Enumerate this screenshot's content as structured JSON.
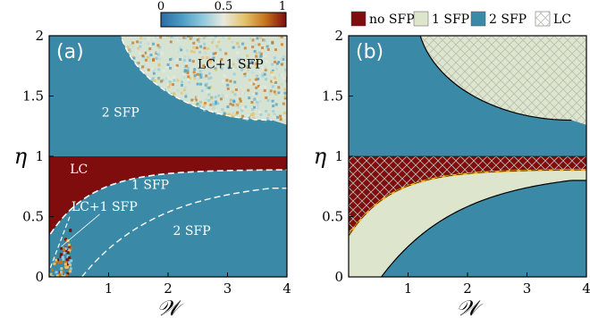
{
  "colors": {
    "sfp2": "#3a89a6",
    "nosfp": "#7f0d0d",
    "sfp1": "#dde5cc",
    "frame": "#000000",
    "dashed": "#ffffff"
  },
  "colorbar": {
    "ticks": [
      "0",
      "0.5",
      "1"
    ],
    "colormap": [
      "#2b6ca3",
      "#4a9cc4",
      "#8ec9dc",
      "#e8eadf",
      "#e3c36a",
      "#c7741d",
      "#7f0d0d"
    ]
  },
  "chart_data": [
    {
      "type": "heatmap",
      "panel_label": "(a)",
      "xlabel": "𝒲",
      "ylabel": "η",
      "xlim": [
        0,
        4
      ],
      "ylim": [
        0,
        2
      ],
      "xticks": [
        1,
        2,
        3,
        4
      ],
      "yticks": [
        0,
        0.5,
        1,
        1.5,
        2
      ],
      "xtick_labels": [
        "1",
        "2",
        "3",
        "4"
      ],
      "ytick_labels": [
        "0",
        "0.5",
        "1",
        "1.5",
        "2"
      ],
      "region_labels": [
        {
          "text": "LC+1 SFP",
          "x": 3.05,
          "y": 1.73,
          "color": "#000000"
        },
        {
          "text": "2 SFP",
          "x": 1.2,
          "y": 1.33,
          "color": "#ffffff"
        },
        {
          "text": "LC",
          "x": 0.5,
          "y": 0.86,
          "color": "#ffffff"
        },
        {
          "text": "1 SFP",
          "x": 1.7,
          "y": 0.73,
          "color": "#ffffff"
        },
        {
          "text": "LC+1 SFP",
          "x": 0.93,
          "y": 0.55,
          "color": "#ffffff"
        },
        {
          "text": "2 SFP",
          "x": 2.4,
          "y": 0.35,
          "color": "#ffffff"
        }
      ]
    },
    {
      "type": "area",
      "panel_label": "(b)",
      "xlabel": "𝒲",
      "ylabel": "η",
      "xlim": [
        0,
        4
      ],
      "ylim": [
        0,
        2
      ],
      "xticks": [
        1,
        2,
        3,
        4
      ],
      "yticks": [
        0,
        0.5,
        1,
        1.5,
        2
      ],
      "xtick_labels": [
        "1",
        "2",
        "3",
        "4"
      ],
      "ytick_labels": [
        "0",
        "0.5",
        "1",
        "1.5",
        "2"
      ],
      "legend": [
        {
          "label": "no SFP",
          "color": "#7f0d0d"
        },
        {
          "label": "1 SFP",
          "color": "#dde5cc"
        },
        {
          "label": "2 SFP",
          "color": "#3a89a6"
        },
        {
          "label": "LC",
          "color": "hatch"
        }
      ],
      "legend_position": "top"
    }
  ]
}
